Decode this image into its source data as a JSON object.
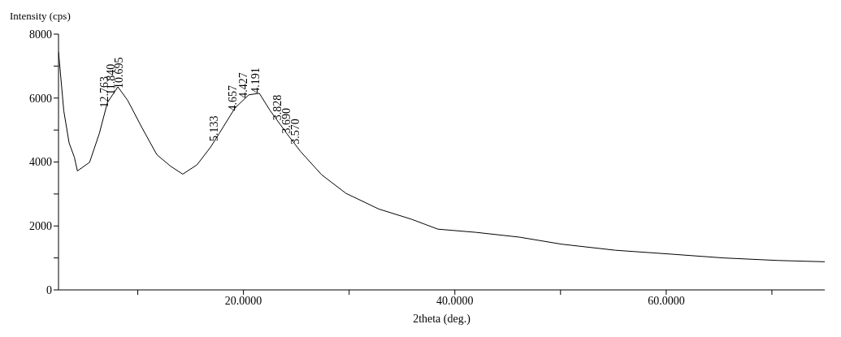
{
  "chart_data": {
    "type": "line",
    "xlabel": "2theta (deg.)",
    "ylabel": "Intensity (cps)",
    "x": [
      2.5,
      3,
      3.5,
      4,
      4.29,
      5.44,
      6.36,
      7.13,
      8.12,
      9.04,
      10.42,
      11.8,
      13.1,
      14.25,
      15.6,
      16.9,
      17.7,
      19.2,
      20.5,
      21.5,
      22.5,
      24.1,
      25.4,
      27.4,
      29.7,
      32.8,
      35.9,
      38.4,
      42,
      46.1,
      50.1,
      55.2,
      60.4,
      65.4,
      70.6,
      75
    ],
    "series": [
      {
        "color": "#000000",
        "values": [
          7450,
          5600,
          4600,
          4150,
          3720,
          3990,
          4890,
          5860,
          6350,
          5930,
          5060,
          4230,
          3870,
          3620,
          3910,
          4470,
          4890,
          5690,
          6100,
          6150,
          5620,
          4890,
          4330,
          3600,
          3020,
          2530,
          2210,
          1900,
          1800,
          1650,
          1430,
          1240,
          1120,
          1000,
          920,
          880
        ]
      }
    ],
    "xlim": [
      2.5,
      75
    ],
    "xticks": [
      {
        "value": 10,
        "label": null
      },
      {
        "value": 20,
        "label": "20.0000"
      },
      {
        "value": 30,
        "label": null
      },
      {
        "value": 40,
        "label": "40.0000"
      },
      {
        "value": 50,
        "label": null
      },
      {
        "value": 60,
        "label": "60.0000"
      },
      {
        "value": 70,
        "label": null
      }
    ],
    "ylim": [
      0,
      8000
    ],
    "yticks": [
      0,
      {
        "value": 1000,
        "label": null
      },
      2000,
      {
        "value": 3000,
        "label": null
      },
      4000,
      {
        "value": 5000,
        "label": null
      },
      6000,
      {
        "value": 7000,
        "label": null
      },
      8000
    ],
    "annotations": [
      {
        "text": "12.763",
        "x": 6.92,
        "y": 5700
      },
      {
        "text": "11.840",
        "x": 7.46,
        "y": 6100
      },
      {
        "text": "10.695",
        "x": 8.26,
        "y": 6300
      },
      {
        "text": "5.133",
        "x": 17.26,
        "y": 4650
      },
      {
        "text": "4.657",
        "x": 19.04,
        "y": 5600
      },
      {
        "text": "4.427",
        "x": 20.04,
        "y": 6000
      },
      {
        "text": "4.191",
        "x": 21.18,
        "y": 6150
      },
      {
        "text": "3.828",
        "x": 23.22,
        "y": 5300
      },
      {
        "text": "3.690",
        "x": 24.1,
        "y": 4890
      },
      {
        "text": "3.570",
        "x": 24.92,
        "y": 4550
      }
    ],
    "grid": false,
    "legend": false,
    "marker": "none",
    "line_style": "solid"
  }
}
